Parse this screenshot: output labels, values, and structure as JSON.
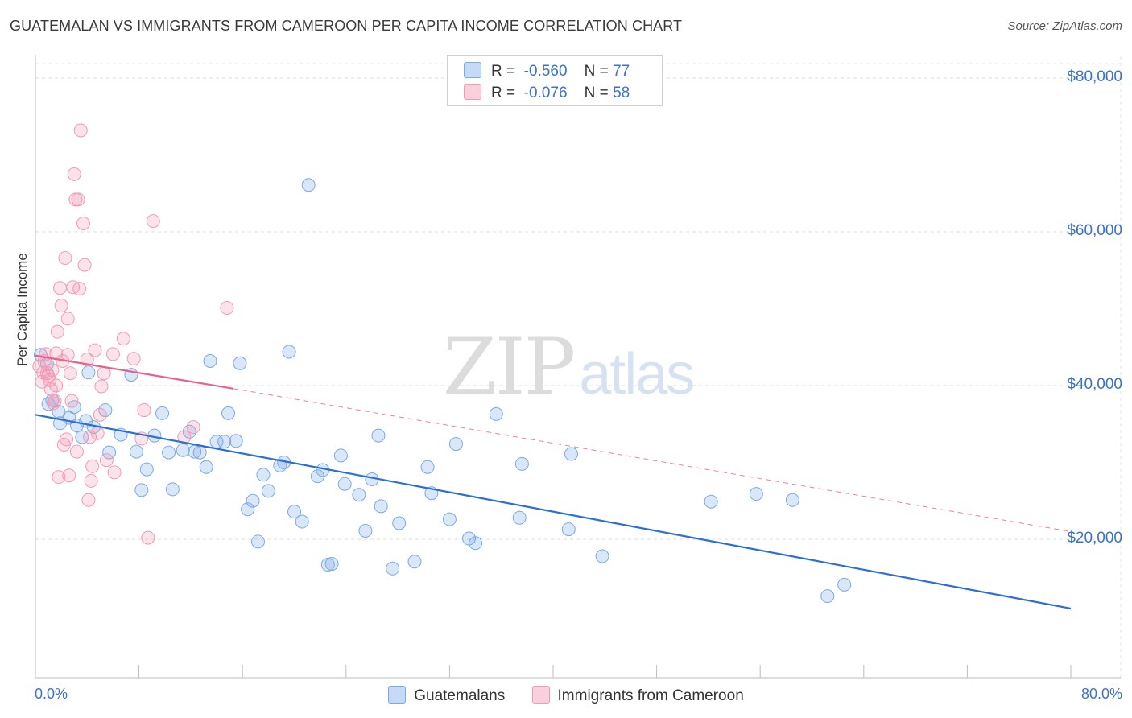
{
  "chart_data": {
    "type": "scatter",
    "title": "GUATEMALAN VS IMMIGRANTS FROM CAMEROON PER CAPITA INCOME CORRELATION CHART",
    "source": "Source: ZipAtlas.com",
    "xlabel": "",
    "ylabel": "Per Capita Income",
    "x_tick_labels": {
      "min": "0.0%",
      "max": "80.0%"
    },
    "xlim": [
      0,
      80
    ],
    "ylim": [
      0,
      85000
    ],
    "y_ticks": [
      {
        "value": 20000,
        "label": "$20,000"
      },
      {
        "value": 40000,
        "label": "$40,000"
      },
      {
        "value": 60000,
        "label": "$60,000"
      },
      {
        "value": 80000,
        "label": "$80,000"
      }
    ],
    "watermark": {
      "zip": "ZIP",
      "atlas": "atlas"
    },
    "legend": {
      "rows": [
        {
          "r_label": "R =",
          "r_value": "-0.560",
          "n_label": "N =",
          "n_value": "77",
          "color": "#a9c8f0"
        },
        {
          "r_label": "R =",
          "r_value": "-0.076",
          "n_label": "N =",
          "n_value": "58",
          "color": "#f5b8ca"
        }
      ]
    },
    "series": [
      {
        "name": "Guatemalans",
        "color": "#7aaae6",
        "line_color": "#2b6fd6",
        "trend": {
          "x": [
            0,
            80
          ],
          "y": [
            36200,
            11000
          ],
          "dashed_extension": false
        },
        "points": [
          [
            0.4,
            44000
          ],
          [
            0.9,
            42800
          ],
          [
            1.0,
            37600
          ],
          [
            1.3,
            38100
          ],
          [
            1.8,
            36600
          ],
          [
            1.9,
            35100
          ],
          [
            2.6,
            35800
          ],
          [
            3.0,
            37200
          ],
          [
            3.2,
            34800
          ],
          [
            3.6,
            33300
          ],
          [
            3.9,
            35400
          ],
          [
            4.1,
            41700
          ],
          [
            4.5,
            34600
          ],
          [
            5.4,
            36800
          ],
          [
            5.7,
            31300
          ],
          [
            6.6,
            33600
          ],
          [
            7.4,
            41400
          ],
          [
            7.8,
            31400
          ],
          [
            8.2,
            26400
          ],
          [
            8.6,
            29100
          ],
          [
            9.2,
            33500
          ],
          [
            9.8,
            36400
          ],
          [
            10.3,
            31300
          ],
          [
            10.6,
            26500
          ],
          [
            11.4,
            31600
          ],
          [
            11.9,
            34000
          ],
          [
            12.3,
            31400
          ],
          [
            12.7,
            31300
          ],
          [
            13.2,
            29400
          ],
          [
            13.5,
            43200
          ],
          [
            14.0,
            32700
          ],
          [
            14.6,
            32700
          ],
          [
            14.9,
            36400
          ],
          [
            15.5,
            32800
          ],
          [
            15.8,
            42900
          ],
          [
            16.4,
            23900
          ],
          [
            16.8,
            25000
          ],
          [
            17.2,
            19700
          ],
          [
            17.6,
            28400
          ],
          [
            18.0,
            26300
          ],
          [
            18.9,
            29600
          ],
          [
            19.2,
            30000
          ],
          [
            19.6,
            44400
          ],
          [
            20.0,
            23600
          ],
          [
            20.6,
            22300
          ],
          [
            21.1,
            66100
          ],
          [
            21.8,
            28200
          ],
          [
            22.2,
            29000
          ],
          [
            22.6,
            16700
          ],
          [
            22.9,
            16800
          ],
          [
            23.6,
            30900
          ],
          [
            23.9,
            27200
          ],
          [
            25.0,
            25800
          ],
          [
            25.5,
            21100
          ],
          [
            26.0,
            27800
          ],
          [
            26.5,
            33500
          ],
          [
            26.7,
            24300
          ],
          [
            27.6,
            16200
          ],
          [
            28.1,
            22100
          ],
          [
            29.3,
            17100
          ],
          [
            30.3,
            29400
          ],
          [
            30.6,
            26000
          ],
          [
            32.0,
            22600
          ],
          [
            32.5,
            32400
          ],
          [
            33.5,
            20100
          ],
          [
            34.0,
            19500
          ],
          [
            35.6,
            36300
          ],
          [
            37.4,
            22800
          ],
          [
            37.6,
            29800
          ],
          [
            41.2,
            21300
          ],
          [
            41.4,
            31100
          ],
          [
            43.8,
            17800
          ],
          [
            52.2,
            24900
          ],
          [
            55.7,
            25900
          ],
          [
            58.5,
            25100
          ],
          [
            61.2,
            12600
          ],
          [
            62.5,
            14100
          ]
        ]
      },
      {
        "name": "Immigrants from Cameroon",
        "color": "#f29ab4",
        "line_color": "#e8618c",
        "trend": {
          "x": [
            0,
            15.3
          ],
          "y": [
            43900,
            39600
          ],
          "dashed_extension": {
            "x": [
              15.3,
              80
            ],
            "y": [
              39600,
              21000
            ]
          }
        },
        "points": [
          [
            0.3,
            42500
          ],
          [
            0.5,
            40500
          ],
          [
            0.6,
            41700
          ],
          [
            0.7,
            43200
          ],
          [
            0.8,
            44100
          ],
          [
            0.9,
            41600
          ],
          [
            1.0,
            41200
          ],
          [
            1.1,
            40700
          ],
          [
            1.2,
            39500
          ],
          [
            1.3,
            42000
          ],
          [
            1.4,
            37700
          ],
          [
            1.5,
            38000
          ],
          [
            1.6,
            44200
          ],
          [
            1.6,
            40000
          ],
          [
            1.7,
            47000
          ],
          [
            1.8,
            28100
          ],
          [
            1.9,
            52700
          ],
          [
            2.0,
            50400
          ],
          [
            2.1,
            43200
          ],
          [
            2.2,
            32300
          ],
          [
            2.3,
            56600
          ],
          [
            2.4,
            33000
          ],
          [
            2.5,
            48700
          ],
          [
            2.6,
            28300
          ],
          [
            2.7,
            41600
          ],
          [
            2.8,
            38000
          ],
          [
            2.9,
            52800
          ],
          [
            3.0,
            67500
          ],
          [
            3.1,
            64200
          ],
          [
            3.2,
            31400
          ],
          [
            3.3,
            64200
          ],
          [
            3.4,
            52600
          ],
          [
            3.5,
            73200
          ],
          [
            3.7,
            61100
          ],
          [
            3.8,
            55700
          ],
          [
            4.0,
            43400
          ],
          [
            4.1,
            25100
          ],
          [
            4.2,
            33300
          ],
          [
            4.3,
            27600
          ],
          [
            4.4,
            29500
          ],
          [
            4.6,
            44600
          ],
          [
            4.8,
            33800
          ],
          [
            5.0,
            36200
          ],
          [
            5.1,
            39900
          ],
          [
            5.3,
            41600
          ],
          [
            5.5,
            30300
          ],
          [
            6.0,
            44100
          ],
          [
            6.1,
            28700
          ],
          [
            6.8,
            46100
          ],
          [
            7.6,
            43500
          ],
          [
            8.2,
            33100
          ],
          [
            8.4,
            36800
          ],
          [
            8.7,
            20200
          ],
          [
            9.1,
            61400
          ],
          [
            11.5,
            33300
          ],
          [
            12.2,
            34600
          ],
          [
            14.8,
            50100
          ],
          [
            2.5,
            44000
          ]
        ]
      }
    ]
  }
}
